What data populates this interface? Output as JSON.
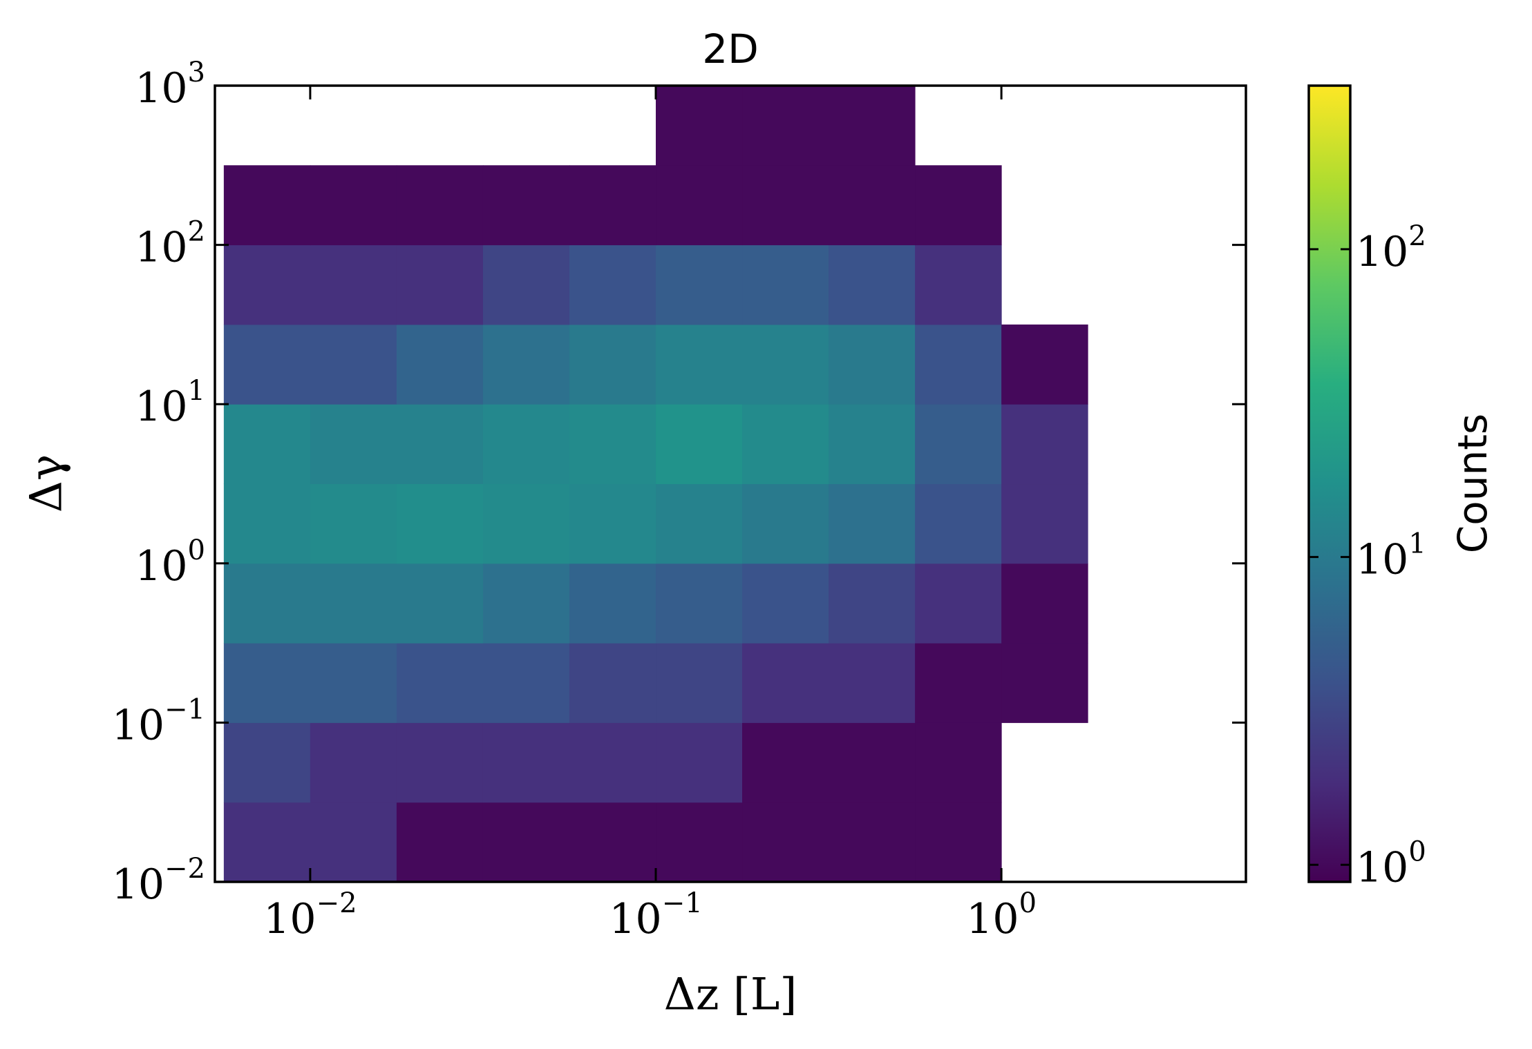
{
  "chart_data": {
    "type": "hist2d",
    "title": "2D",
    "x_label": "Δz [L]",
    "y_label": "Δγ",
    "colorbar_label": "Counts",
    "xscale": "log",
    "yscale": "log",
    "colorbar_scale": "log",
    "colormap": "viridis",
    "xlim": [
      0.0053,
      5.1
    ],
    "ylim": [
      0.01,
      1000
    ],
    "clim": [
      0.88,
      340
    ],
    "xticks": [
      {
        "value": 0.01,
        "label": "10^−2"
      },
      {
        "value": 0.1,
        "label": "10^−1"
      },
      {
        "value": 1,
        "label": "10^0"
      }
    ],
    "yticks": [
      {
        "value": 0.01,
        "label": "10^−2"
      },
      {
        "value": 0.1,
        "label": "10^−1"
      },
      {
        "value": 1,
        "label": "10^0"
      },
      {
        "value": 10,
        "label": "10^1"
      },
      {
        "value": 100,
        "label": "10^2"
      },
      {
        "value": 1000,
        "label": "10^3"
      }
    ],
    "cticks": [
      {
        "value": 1,
        "label": "10^0"
      },
      {
        "value": 10,
        "label": "10^1"
      },
      {
        "value": 100,
        "label": "10^2"
      }
    ],
    "xbins": [
      0.005623,
      0.01,
      0.01778,
      0.03162,
      0.05623,
      0.1,
      0.1778,
      0.3162,
      0.5623,
      1,
      1.778
    ],
    "ybins": [
      0.01,
      0.03162,
      0.1,
      0.3162,
      1,
      3.162,
      10,
      31.62,
      100,
      316.2,
      1000
    ],
    "counts": [
      [
        2,
        2,
        1,
        1,
        1,
        1,
        1,
        1,
        1,
        null
      ],
      [
        3,
        2,
        2,
        2,
        2,
        2,
        1,
        1,
        1,
        null
      ],
      [
        5,
        5,
        4,
        4,
        3,
        3,
        2,
        2,
        1,
        1
      ],
      [
        10,
        10,
        10,
        8,
        6,
        5,
        4,
        3,
        2,
        1
      ],
      [
        14,
        15,
        16,
        15,
        14,
        12,
        10,
        8,
        4,
        2
      ],
      [
        14,
        12,
        12,
        14,
        15,
        18,
        15,
        12,
        5,
        2
      ],
      [
        4,
        4,
        6,
        8,
        10,
        12,
        12,
        10,
        4,
        1
      ],
      [
        2,
        2,
        2,
        3,
        4,
        5,
        5,
        4,
        2,
        null
      ],
      [
        1,
        1,
        1,
        1,
        1,
        1,
        1,
        1,
        1,
        null
      ],
      [
        null,
        null,
        null,
        null,
        null,
        1,
        1,
        1,
        null,
        null
      ]
    ]
  }
}
